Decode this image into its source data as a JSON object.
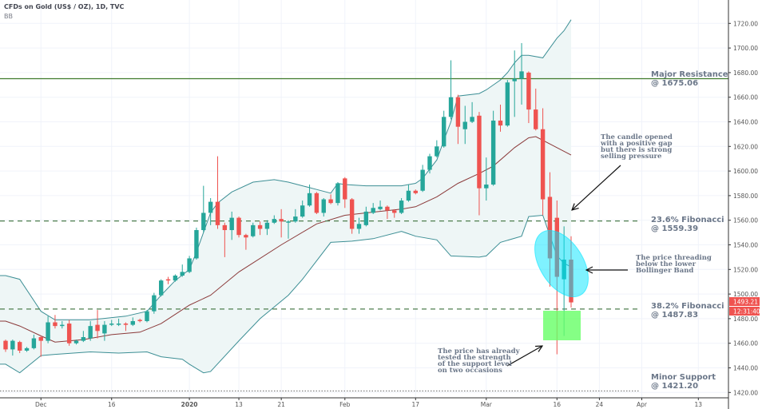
{
  "header": {
    "title": "CFDs on Gold (US$ / OZ), 1D, TVC",
    "indicator": "BB"
  },
  "colors": {
    "up": "#26a69a",
    "down": "#ef5350",
    "band": "#3d8f95",
    "basis": "#8b3a3a",
    "band_fill": "#eef6f6",
    "resistance": "#3f7a2c",
    "fib": "#4f7f4f",
    "support": "#777777",
    "price_tag": "#ef5350",
    "note_text": "#6b7789",
    "ellipse": "#00e5ff",
    "box": "#66ff66"
  },
  "chart_data": {
    "type": "candlestick",
    "ylim": [
      1410,
      1730
    ],
    "y_ticks": [
      1420,
      1440,
      1460,
      1480,
      1500,
      1520,
      1540,
      1560,
      1580,
      1600,
      1620,
      1640,
      1660,
      1680,
      1700,
      1720
    ],
    "y_tick_labels": [
      "1420.00",
      "1440.00",
      "1460.00",
      "1480.00",
      "1500.00",
      "1520.00",
      "1540.00",
      "1560.00",
      "1580.00",
      "1600.00",
      "1620.00",
      "1640.00",
      "1660.00",
      "1680.00",
      "1700.00",
      "1720.00"
    ],
    "x_ticks": [
      {
        "label": "Dec",
        "date": "2019-12-02"
      },
      {
        "label": "16",
        "date": "2019-12-16"
      },
      {
        "label": "2020",
        "date": "2020-01-02"
      },
      {
        "label": "13",
        "date": "2020-01-13"
      },
      {
        "label": "21",
        "date": "2020-01-21"
      },
      {
        "label": "Feb",
        "date": "2020-02-03"
      },
      {
        "label": "17",
        "date": "2020-02-17"
      },
      {
        "label": "Mar",
        "date": "2020-03-02"
      },
      {
        "label": "16",
        "date": "2020-03-16"
      },
      {
        "label": "24",
        "date": "2020-03-24"
      },
      {
        "label": "Apr",
        "date": "2020-04-01"
      },
      {
        "label": "13",
        "date": "2020-04-13"
      }
    ],
    "grid": true,
    "candle_fields": [
      "date",
      "open",
      "high",
      "low",
      "close"
    ],
    "candles": [
      [
        "2019-11-25",
        1462,
        1463,
        1453,
        1455
      ],
      [
        "2019-11-26",
        1455,
        1463,
        1450,
        1462
      ],
      [
        "2019-11-27",
        1461,
        1462,
        1452,
        1454
      ],
      [
        "2019-11-28",
        1454,
        1457,
        1453,
        1456
      ],
      [
        "2019-11-29",
        1456,
        1467,
        1455,
        1464
      ],
      [
        "2019-12-02",
        1465,
        1466,
        1449,
        1462
      ],
      [
        "2019-12-03",
        1462,
        1482,
        1460,
        1477
      ],
      [
        "2019-12-04",
        1477,
        1483,
        1472,
        1474
      ],
      [
        "2019-12-05",
        1474,
        1478,
        1472,
        1475
      ],
      [
        "2019-12-06",
        1476,
        1479,
        1458,
        1460
      ],
      [
        "2019-12-09",
        1460,
        1463,
        1459,
        1462
      ],
      [
        "2019-12-10",
        1462,
        1470,
        1461,
        1465
      ],
      [
        "2019-12-11",
        1464,
        1478,
        1462,
        1474
      ],
      [
        "2019-12-12",
        1475,
        1487,
        1464,
        1470
      ],
      [
        "2019-12-13",
        1468,
        1478,
        1462,
        1475
      ],
      [
        "2019-12-16",
        1475,
        1479,
        1474,
        1476
      ],
      [
        "2019-12-17",
        1475,
        1480,
        1474,
        1476
      ],
      [
        "2019-12-18",
        1476,
        1477,
        1470,
        1475
      ],
      [
        "2019-12-19",
        1475,
        1481,
        1474,
        1478
      ],
      [
        "2019-12-20",
        1479,
        1480,
        1477,
        1478
      ],
      [
        "2019-12-23",
        1478,
        1487,
        1477,
        1486
      ],
      [
        "2019-12-24",
        1486,
        1501,
        1484,
        1499
      ],
      [
        "2019-12-26",
        1499,
        1512,
        1498,
        1511
      ],
      [
        "2019-12-27",
        1512,
        1514,
        1508,
        1511
      ],
      [
        "2019-12-30",
        1511,
        1516,
        1510,
        1515
      ],
      [
        "2019-12-31",
        1515,
        1524,
        1514,
        1518
      ],
      [
        "2020-01-02",
        1518,
        1531,
        1517,
        1529
      ],
      [
        "2020-01-03",
        1529,
        1554,
        1528,
        1552
      ],
      [
        "2020-01-06",
        1552,
        1588,
        1550,
        1566
      ],
      [
        "2020-01-07",
        1566,
        1578,
        1556,
        1575
      ],
      [
        "2020-01-08",
        1575,
        1612,
        1553,
        1556
      ],
      [
        "2020-01-09",
        1556,
        1558,
        1530,
        1552
      ],
      [
        "2020-01-10",
        1552,
        1567,
        1544,
        1562
      ],
      [
        "2020-01-13",
        1562,
        1563,
        1546,
        1548
      ],
      [
        "2020-01-14",
        1548,
        1549,
        1536,
        1546
      ],
      [
        "2020-01-15",
        1547,
        1558,
        1546,
        1556
      ],
      [
        "2020-01-16",
        1556,
        1559,
        1548,
        1553
      ],
      [
        "2020-01-17",
        1553,
        1560,
        1548,
        1558
      ],
      [
        "2020-01-20",
        1558,
        1564,
        1557,
        1561
      ],
      [
        "2020-01-21",
        1561,
        1569,
        1546,
        1559
      ],
      [
        "2020-01-22",
        1558,
        1560,
        1545,
        1559
      ],
      [
        "2020-01-23",
        1559,
        1569,
        1558,
        1563
      ],
      [
        "2020-01-24",
        1563,
        1576,
        1562,
        1572
      ],
      [
        "2020-01-27",
        1572,
        1589,
        1571,
        1582
      ],
      [
        "2020-01-28",
        1582,
        1583,
        1565,
        1566
      ],
      [
        "2020-01-29",
        1566,
        1578,
        1563,
        1577
      ],
      [
        "2020-01-30",
        1577,
        1581,
        1573,
        1574
      ],
      [
        "2020-01-31",
        1574,
        1591,
        1572,
        1590
      ],
      [
        "2020-02-03",
        1594,
        1595,
        1570,
        1577
      ],
      [
        "2020-02-04",
        1577,
        1578,
        1549,
        1553
      ],
      [
        "2020-02-05",
        1553,
        1562,
        1549,
        1557
      ],
      [
        "2020-02-06",
        1556,
        1571,
        1555,
        1567
      ],
      [
        "2020-02-07",
        1566,
        1574,
        1565,
        1570
      ],
      [
        "2020-02-10",
        1569,
        1576,
        1568,
        1571
      ],
      [
        "2020-02-11",
        1571,
        1572,
        1561,
        1568
      ],
      [
        "2020-02-12",
        1568,
        1569,
        1562,
        1566
      ],
      [
        "2020-02-13",
        1566,
        1578,
        1565,
        1576
      ],
      [
        "2020-02-14",
        1576,
        1589,
        1575,
        1584
      ],
      [
        "2020-02-17",
        1584,
        1585,
        1581,
        1582
      ],
      [
        "2020-02-18",
        1584,
        1605,
        1583,
        1601
      ],
      [
        "2020-02-19",
        1601,
        1614,
        1598,
        1612
      ],
      [
        "2020-02-20",
        1612,
        1625,
        1611,
        1620
      ],
      [
        "2020-02-21",
        1620,
        1649,
        1619,
        1644
      ],
      [
        "2020-02-24",
        1644,
        1690,
        1642,
        1660
      ],
      [
        "2020-02-25",
        1660,
        1662,
        1622,
        1636
      ],
      [
        "2020-02-26",
        1634,
        1653,
        1622,
        1640
      ],
      [
        "2020-02-27",
        1640,
        1656,
        1639,
        1644
      ],
      [
        "2020-02-28",
        1645,
        1648,
        1564,
        1586
      ],
      [
        "2020-03-02",
        1586,
        1611,
        1576,
        1589
      ],
      [
        "2020-03-03",
        1589,
        1649,
        1588,
        1641
      ],
      [
        "2020-03-04",
        1641,
        1654,
        1632,
        1637
      ],
      [
        "2020-03-05",
        1637,
        1674,
        1636,
        1672
      ],
      [
        "2020-03-06",
        1673,
        1698,
        1644,
        1675
      ],
      [
        "2020-03-09",
        1675,
        1704,
        1654,
        1681
      ],
      [
        "2020-03-10",
        1680,
        1681,
        1639,
        1650
      ],
      [
        "2020-03-11",
        1650,
        1667,
        1633,
        1634
      ],
      [
        "2020-03-12",
        1634,
        1651,
        1564,
        1577
      ],
      [
        "2020-03-13",
        1579,
        1599,
        1506,
        1529
      ],
      [
        "2020-03-16",
        1562,
        1576,
        1451,
        1514
      ],
      [
        "2020-03-17",
        1512,
        1555,
        1466,
        1528
      ],
      [
        "2020-03-18",
        1528,
        1547,
        1489,
        1493.21
      ]
    ],
    "bollinger": {
      "upper": [
        [
          "2019-11-25",
          1515
        ],
        [
          "2019-11-27",
          1512
        ],
        [
          "2019-12-02",
          1486
        ],
        [
          "2019-12-04",
          1479
        ],
        [
          "2019-12-11",
          1479
        ],
        [
          "2019-12-18",
          1482
        ],
        [
          "2019-12-23",
          1486
        ],
        [
          "2019-12-26",
          1499
        ],
        [
          "2019-12-30",
          1511
        ],
        [
          "2020-01-02",
          1520
        ],
        [
          "2020-01-03",
          1534
        ],
        [
          "2020-01-07",
          1566
        ],
        [
          "2020-01-08",
          1574
        ],
        [
          "2020-01-10",
          1583
        ],
        [
          "2020-01-15",
          1591
        ],
        [
          "2020-01-20",
          1593
        ],
        [
          "2020-01-22",
          1591
        ],
        [
          "2020-01-24",
          1588
        ],
        [
          "2020-01-28",
          1585
        ],
        [
          "2020-01-30",
          1582
        ],
        [
          "2020-01-31",
          1590
        ],
        [
          "2020-02-03",
          1589
        ],
        [
          "2020-02-06",
          1588
        ],
        [
          "2020-02-13",
          1588
        ],
        [
          "2020-02-17",
          1590
        ],
        [
          "2020-02-18",
          1594
        ],
        [
          "2020-02-20",
          1609
        ],
        [
          "2020-02-21",
          1625
        ],
        [
          "2020-02-24",
          1640
        ],
        [
          "2020-02-25",
          1661
        ],
        [
          "2020-02-28",
          1663
        ],
        [
          "2020-03-02",
          1666
        ],
        [
          "2020-03-04",
          1674
        ],
        [
          "2020-03-05",
          1680
        ],
        [
          "2020-03-06",
          1688
        ],
        [
          "2020-03-09",
          1694
        ],
        [
          "2020-03-10",
          1694
        ],
        [
          "2020-03-12",
          1692
        ],
        [
          "2020-03-13",
          1700
        ],
        [
          "2020-03-16",
          1708
        ],
        [
          "2020-03-17",
          1714
        ],
        [
          "2020-03-18",
          1723
        ]
      ],
      "basis": [
        [
          "2019-11-25",
          1478
        ],
        [
          "2019-11-27",
          1474
        ],
        [
          "2019-12-02",
          1466
        ],
        [
          "2019-12-04",
          1461
        ],
        [
          "2019-12-10",
          1463
        ],
        [
          "2019-12-16",
          1467
        ],
        [
          "2019-12-20",
          1469
        ],
        [
          "2019-12-26",
          1476
        ],
        [
          "2020-01-02",
          1491
        ],
        [
          "2020-01-07",
          1499
        ],
        [
          "2020-01-13",
          1518
        ],
        [
          "2020-01-21",
          1540
        ],
        [
          "2020-01-28",
          1557
        ],
        [
          "2020-02-03",
          1564
        ],
        [
          "2020-02-06",
          1566
        ],
        [
          "2020-02-13",
          1569
        ],
        [
          "2020-02-17",
          1571
        ],
        [
          "2020-02-20",
          1579
        ],
        [
          "2020-02-25",
          1590
        ],
        [
          "2020-02-28",
          1598
        ],
        [
          "2020-03-03",
          1604
        ],
        [
          "2020-03-06",
          1619
        ],
        [
          "2020-03-10",
          1627
        ],
        [
          "2020-03-11",
          1628
        ],
        [
          "2020-03-13",
          1622
        ],
        [
          "2020-03-18",
          1613
        ]
      ],
      "lower": [
        [
          "2019-11-25",
          1443
        ],
        [
          "2019-11-27",
          1436
        ],
        [
          "2019-12-02",
          1450
        ],
        [
          "2019-12-04",
          1451
        ],
        [
          "2019-12-11",
          1453
        ],
        [
          "2019-12-17",
          1452
        ],
        [
          "2019-12-23",
          1453
        ],
        [
          "2019-12-26",
          1449
        ],
        [
          "2019-12-31",
          1447
        ],
        [
          "2020-01-02",
          1443
        ],
        [
          "2020-01-06",
          1436
        ],
        [
          "2020-01-07",
          1437
        ],
        [
          "2020-01-13",
          1462
        ],
        [
          "2020-01-16",
          1480
        ],
        [
          "2020-01-22",
          1499
        ],
        [
          "2020-01-24",
          1512
        ],
        [
          "2020-01-30",
          1542
        ],
        [
          "2020-02-04",
          1543
        ],
        [
          "2020-02-07",
          1545
        ],
        [
          "2020-02-13",
          1551
        ],
        [
          "2020-02-17",
          1547
        ],
        [
          "2020-02-20",
          1544
        ],
        [
          "2020-02-24",
          1531
        ],
        [
          "2020-02-28",
          1530
        ],
        [
          "2020-03-02",
          1531
        ],
        [
          "2020-03-04",
          1542
        ],
        [
          "2020-03-09",
          1547
        ],
        [
          "2020-03-10",
          1563
        ],
        [
          "2020-03-12",
          1564
        ],
        [
          "2020-03-16",
          1531
        ],
        [
          "2020-03-17",
          1525
        ],
        [
          "2020-03-18",
          1522
        ]
      ]
    },
    "levels": [
      {
        "name": "resistance",
        "value": 1675.06,
        "style": "solid",
        "lines": [
          "Major Resistance",
          "@ 1675.06"
        ]
      },
      {
        "name": "fib-23-6",
        "value": 1559.39,
        "style": "dashed",
        "lines": [
          "23.6% Fibonacci",
          "@ 1559.39"
        ]
      },
      {
        "name": "fib-38-2",
        "value": 1487.83,
        "style": "dashed",
        "lines": [
          "38.2% Fibonacci",
          "@ 1487.83"
        ]
      },
      {
        "name": "minor-support",
        "value": 1421.2,
        "style": "dotted",
        "lines": [
          "Minor Support",
          "@ 1421.20"
        ]
      }
    ],
    "last_price": "1493.21",
    "countdown": "12:31:40",
    "annotations": {
      "gap_note": [
        "The candle opened",
        "with a positive gap",
        "but there is strong",
        "selling pressure"
      ],
      "band_note": [
        "The price threading",
        "below the lower",
        "Bollinger Band"
      ],
      "support_note": [
        "The price has already",
        "tested the strength",
        "of the support level",
        "on two occasions"
      ]
    }
  }
}
